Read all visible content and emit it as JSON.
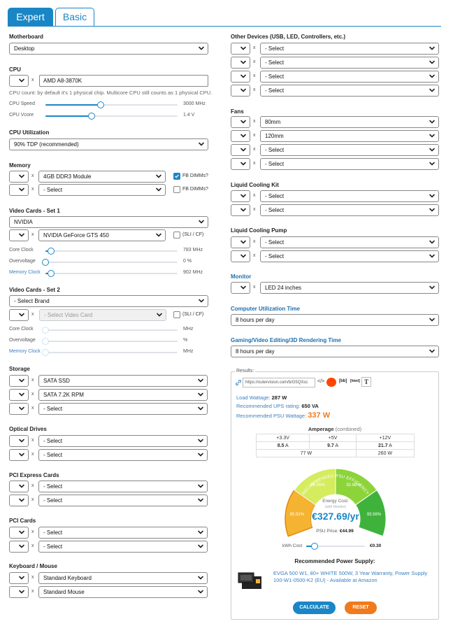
{
  "tabs": [
    {
      "label": "Expert"
    },
    {
      "label": "Basic"
    }
  ],
  "left": {
    "motherboard": {
      "label": "Motherboard",
      "value": "Desktop"
    },
    "cpu": {
      "label": "CPU",
      "model": "AMD A8-3870K",
      "note": "CPU count: by default it's 1 physical chip. Multicore CPU still counts as 1 physical CPU.",
      "speed": {
        "label": "CPU Speed",
        "value": "3000 MHz",
        "fraction": 0.42
      },
      "vcore": {
        "label": "CPU Vcore",
        "value": "1.4 V",
        "fraction": 0.35
      }
    },
    "utilization": {
      "label": "CPU Utilization",
      "value": "90% TDP (recommended)"
    },
    "memory": {
      "label": "Memory",
      "rows": [
        {
          "value": "4GB DDR3 Module",
          "check_label": "FB DIMMs?",
          "checked": true
        },
        {
          "value": "- Select",
          "check_label": "FB DIMMs?",
          "checked": false
        }
      ]
    },
    "video1": {
      "label": "Video Cards - Set 1",
      "brand": "NVIDIA",
      "card": "NVIDIA GeForce GTS 450",
      "sli": "(SLI / CF)",
      "sliders": [
        {
          "label": "Core Clock",
          "value": "783 MHz",
          "fraction": 0.04
        },
        {
          "label": "Overvoltage",
          "value": "0 %",
          "fraction": 0.0
        },
        {
          "label": "Memory Clock",
          "value": "902 MHz",
          "fraction": 0.04
        }
      ]
    },
    "video2": {
      "label": "Video Cards - Set 2",
      "brand": "- Select Brand",
      "card": "- Select Video Card",
      "sli": "(SLI / CF)",
      "sliders": [
        {
          "label": "Core Clock",
          "value": "MHz"
        },
        {
          "label": "Overvoltage",
          "value": "%"
        },
        {
          "label": "Memory Clock",
          "value": "MHz"
        }
      ]
    },
    "storage": {
      "label": "Storage",
      "rows": [
        "SATA SSD",
        "SATA 7.2K RPM",
        "- Select"
      ]
    },
    "optical": {
      "label": "Optical Drives",
      "rows": [
        "- Select",
        "- Select"
      ]
    },
    "pcie": {
      "label": "PCI Express Cards",
      "rows": [
        "- Select",
        "- Select"
      ]
    },
    "pci": {
      "label": "PCI Cards",
      "rows": [
        "- Select",
        "- Select"
      ]
    },
    "kbm": {
      "label": "Keyboard / Mouse",
      "rows": [
        "Standard Keyboard",
        "Standard Mouse"
      ]
    }
  },
  "right": {
    "other": {
      "label": "Other Devices (USB, LED, Controllers, etc.)",
      "rows": [
        "- Select",
        "- Select",
        "- Select",
        "- Select"
      ]
    },
    "fans": {
      "label": "Fans",
      "rows": [
        "80mm",
        "120mm",
        "- Select",
        "- Select"
      ]
    },
    "liquid_kit": {
      "label": "Liquid Cooling Kit",
      "rows": [
        "- Select",
        "- Select"
      ]
    },
    "liquid_pump": {
      "label": "Liquid Cooling Pump",
      "rows": [
        "- Select",
        "- Select"
      ]
    },
    "monitor": {
      "label": "Monitor",
      "value": "LED 24 inches"
    },
    "util_time": {
      "label": "Computer Utilization Time",
      "value": "8 hours per day"
    },
    "gaming_time": {
      "label": "Gaming/Video Editing/3D Rendering Time",
      "value": "8 hours per day"
    }
  },
  "results": {
    "legend": "Results:",
    "share_url": "https://outervision.com/b/G5QXsc",
    "share_icons": [
      "</>",
      "[bb]",
      "[html]",
      "T"
    ],
    "load": {
      "label": "Load Wattage:",
      "value": "287 W"
    },
    "ups": {
      "label": "Recommended UPS rating:",
      "value": "650 VA"
    },
    "psu": {
      "label": "Recommended PSU Wattage:",
      "value": "337 W"
    },
    "amperage": {
      "title": "Amperage",
      "sub": "(combined)",
      "heads": [
        "+3.3V",
        "+5V",
        "+12V"
      ],
      "amps": [
        {
          "v": "8.5",
          "u": "A"
        },
        {
          "v": "9.7",
          "u": "A"
        },
        {
          "v": "21.7",
          "u": "A"
        }
      ],
      "watts": [
        "77 W",
        "260 W"
      ]
    },
    "gauge": {
      "title": "RECOMMENDED PSU EFFICIENCY",
      "segments": [
        "85.91%",
        "88.05%",
        "92.88%",
        "93.56%"
      ],
      "cost_label": "Energy Cost:",
      "cost_sub": "(with Monitor)",
      "cost_value": "€327.69/yr",
      "colors": [
        "#f5b332",
        "#d4ec5e",
        "#8cd43a",
        "#3fb23c"
      ]
    },
    "psu_price": {
      "label": "PSU Price:",
      "value": "€44.99"
    },
    "kwh": {
      "label": "kWh Cost",
      "value": "€0.30",
      "fraction": 0.14
    },
    "rec_title": "Recommended Power Supply:",
    "rec_text": "EVGA 500 W1, 80+ WHITE 500W, 3 Year Warranty, Power Supply 100-W1-0500-K2 (EU) - Available at Amazon",
    "calculate": "CALCULATE",
    "reset": "RESET"
  },
  "colors": {
    "accent": "#1b86c6",
    "reset": "#f07a1c",
    "psu_value": "#f07a1c"
  }
}
